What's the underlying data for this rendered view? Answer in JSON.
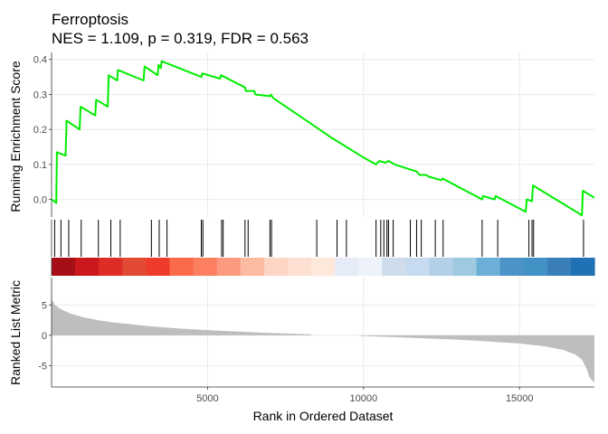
{
  "chart_data": {
    "type": "line",
    "gene_set": "Ferroptosis",
    "stats_line": "NES = 1.109, p = 0.319, FDR = 0.563",
    "stats": {
      "NES": 1.109,
      "p": 0.319,
      "FDR": 0.563
    },
    "xlabel": "Rank in Ordered Dataset",
    "xlim": [
      0,
      17400
    ],
    "x_ticks": [
      5000,
      10000,
      15000
    ],
    "x_tick_labels": [
      "5000",
      "10000",
      "15000"
    ],
    "running_es": {
      "ylabel": "Running Enrichment Score",
      "ylim": [
        -0.05,
        0.42
      ],
      "y_ticks": [
        0.0,
        0.1,
        0.2,
        0.3,
        0.4
      ],
      "y_tick_labels": [
        "0.0",
        "0.1",
        "0.2",
        "0.3",
        "0.4"
      ],
      "line_color": "#00ee00",
      "points": [
        [
          0,
          0.0
        ],
        [
          150,
          -0.01
        ],
        [
          170,
          0.135
        ],
        [
          450,
          0.125
        ],
        [
          480,
          0.225
        ],
        [
          900,
          0.2
        ],
        [
          930,
          0.265
        ],
        [
          1400,
          0.24
        ],
        [
          1430,
          0.285
        ],
        [
          1800,
          0.265
        ],
        [
          1830,
          0.355
        ],
        [
          2100,
          0.34
        ],
        [
          2130,
          0.37
        ],
        [
          2950,
          0.34
        ],
        [
          2980,
          0.38
        ],
        [
          3400,
          0.355
        ],
        [
          3430,
          0.385
        ],
        [
          3500,
          0.375
        ],
        [
          3530,
          0.395
        ],
        [
          4800,
          0.35
        ],
        [
          4830,
          0.36
        ],
        [
          5400,
          0.345
        ],
        [
          5430,
          0.355
        ],
        [
          6200,
          0.32
        ],
        [
          6230,
          0.31
        ],
        [
          6500,
          0.31
        ],
        [
          6530,
          0.3
        ],
        [
          7000,
          0.295
        ],
        [
          7030,
          0.3
        ],
        [
          7100,
          0.29
        ],
        [
          9000,
          0.175
        ],
        [
          10000,
          0.12
        ],
        [
          10400,
          0.1
        ],
        [
          10500,
          0.11
        ],
        [
          10700,
          0.105
        ],
        [
          10800,
          0.11
        ],
        [
          11000,
          0.1
        ],
        [
          11700,
          0.08
        ],
        [
          11800,
          0.07
        ],
        [
          12000,
          0.07
        ],
        [
          12100,
          0.065
        ],
        [
          12500,
          0.055
        ],
        [
          12530,
          0.06
        ],
        [
          13800,
          0.0
        ],
        [
          13830,
          0.01
        ],
        [
          14200,
          0.0
        ],
        [
          14230,
          0.01
        ],
        [
          15200,
          -0.035
        ],
        [
          15230,
          0.0
        ],
        [
          15400,
          -0.005
        ],
        [
          15430,
          0.04
        ],
        [
          17000,
          -0.045
        ],
        [
          17030,
          0.025
        ],
        [
          17400,
          0.005
        ]
      ]
    },
    "hit_positions": [
      100,
      300,
      550,
      950,
      1500,
      1900,
      2200,
      3200,
      3450,
      3700,
      4800,
      4850,
      5450,
      5500,
      6200,
      6300,
      7000,
      7050,
      8500,
      9150,
      9450,
      10400,
      10550,
      10650,
      10750,
      10800,
      10950,
      11500,
      11700,
      11850,
      12300,
      12550,
      13800,
      14300,
      15300,
      15400,
      15450,
      17050
    ],
    "rank_color_bands": [
      "#a50f15",
      "#cb181d",
      "#de2d26",
      "#e34a33",
      "#ef3b2c",
      "#fb6a4a",
      "#fc7f5f",
      "#fb9a7f",
      "#fcbba1",
      "#fdd5c4",
      "#fde0d2",
      "#fee8dc",
      "#e6ecf7",
      "#eef2fa",
      "#cfdcec",
      "#c6dbef",
      "#b2d0e8",
      "#9ecae1",
      "#6baed6",
      "#4c93c7",
      "#4292c6",
      "#3a7fb8",
      "#2171b5"
    ],
    "ranked_list_metric": {
      "ylabel": "Ranked List Metric",
      "ylim": [
        -8.5,
        9.5
      ],
      "y_ticks": [
        -5,
        0,
        5
      ],
      "y_tick_labels": [
        "-5",
        "0",
        "5"
      ],
      "fill_color": "#bebebe",
      "profile": [
        [
          0,
          6.0
        ],
        [
          100,
          5.0
        ],
        [
          300,
          4.3
        ],
        [
          600,
          3.6
        ],
        [
          1000,
          3.0
        ],
        [
          1500,
          2.5
        ],
        [
          2000,
          2.1
        ],
        [
          3000,
          1.55
        ],
        [
          4000,
          1.15
        ],
        [
          5000,
          0.85
        ],
        [
          6000,
          0.6
        ],
        [
          7000,
          0.4
        ],
        [
          8000,
          0.22
        ],
        [
          8300,
          0.18
        ],
        [
          8350,
          0.0
        ],
        [
          9850,
          0.0
        ],
        [
          9900,
          -0.1
        ],
        [
          11000,
          -0.3
        ],
        [
          12000,
          -0.5
        ],
        [
          13000,
          -0.7
        ],
        [
          14000,
          -1.0
        ],
        [
          15000,
          -1.35
        ],
        [
          15800,
          -1.8
        ],
        [
          16400,
          -2.4
        ],
        [
          16800,
          -3.2
        ],
        [
          17000,
          -4.0
        ],
        [
          17150,
          -5.5
        ],
        [
          17250,
          -7.0
        ],
        [
          17400,
          -7.8
        ]
      ]
    }
  }
}
